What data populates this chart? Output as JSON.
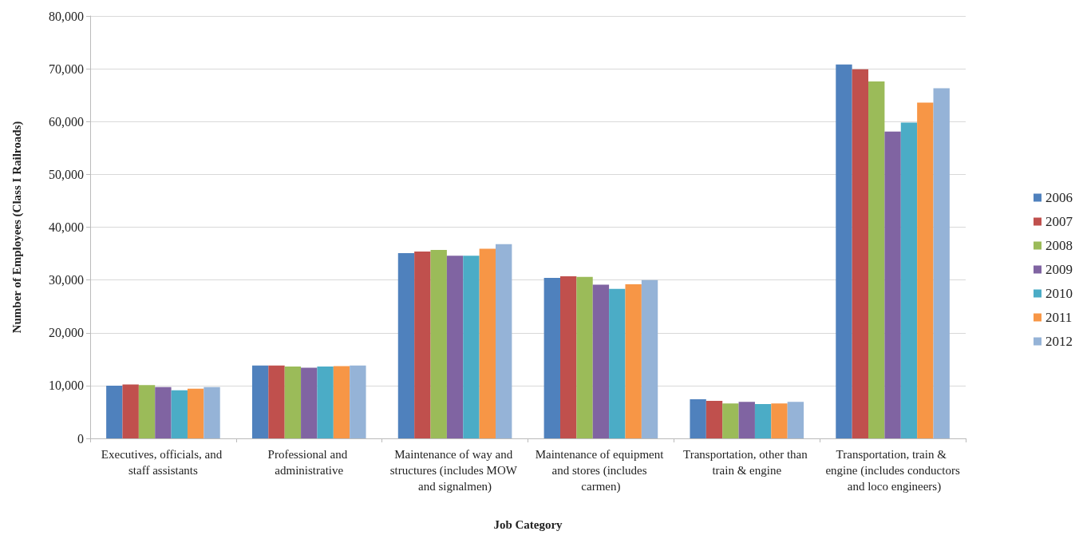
{
  "chart_data": {
    "type": "bar",
    "xlabel": "Job Category",
    "ylabel": "Number of Employees (Class I Railroads)",
    "categories": [
      "Executives, officials, and staff assistants",
      "Professional and administrative",
      "Maintenance of way and structures (includes MOW and signalmen)",
      "Maintenance of equipment and stores (includes carmen)",
      "Transportation, other than train & engine",
      "Transportation, train & engine (includes conductors and loco engineers)"
    ],
    "series": [
      {
        "name": "2006",
        "color": "#4f81bd",
        "values": [
          10000,
          13800,
          35100,
          30400,
          7400,
          70800
        ]
      },
      {
        "name": "2007",
        "color": "#c0504d",
        "values": [
          10200,
          13800,
          35400,
          30700,
          7100,
          69900
        ]
      },
      {
        "name": "2008",
        "color": "#9bbb59",
        "values": [
          10100,
          13600,
          35700,
          30600,
          6600,
          67600
        ]
      },
      {
        "name": "2009",
        "color": "#8064a2",
        "values": [
          9700,
          13400,
          34600,
          29100,
          6900,
          58100
        ]
      },
      {
        "name": "2010",
        "color": "#4bacc6",
        "values": [
          9100,
          13600,
          34600,
          28300,
          6500,
          59800
        ]
      },
      {
        "name": "2011",
        "color": "#f79646",
        "values": [
          9400,
          13700,
          35900,
          29200,
          6600,
          63600
        ]
      },
      {
        "name": "2012",
        "color": "#95b3d7",
        "values": [
          9700,
          13800,
          36800,
          30000,
          6900,
          66300
        ]
      }
    ],
    "ylim": [
      0,
      80000
    ],
    "yticks": [
      0,
      {
        "value": 10000,
        "label": "10,000"
      },
      {
        "value": 20000,
        "label": "20,000"
      },
      {
        "value": 30000,
        "label": "30,000"
      },
      {
        "value": 40000,
        "label": "40,000"
      },
      {
        "value": 50000,
        "label": "50,000"
      },
      {
        "value": 60000,
        "label": "60,000"
      },
      {
        "value": 70000,
        "label": "70,000"
      },
      {
        "value": 80000,
        "label": "80,000"
      }
    ],
    "grid": "y",
    "legend": "right"
  }
}
